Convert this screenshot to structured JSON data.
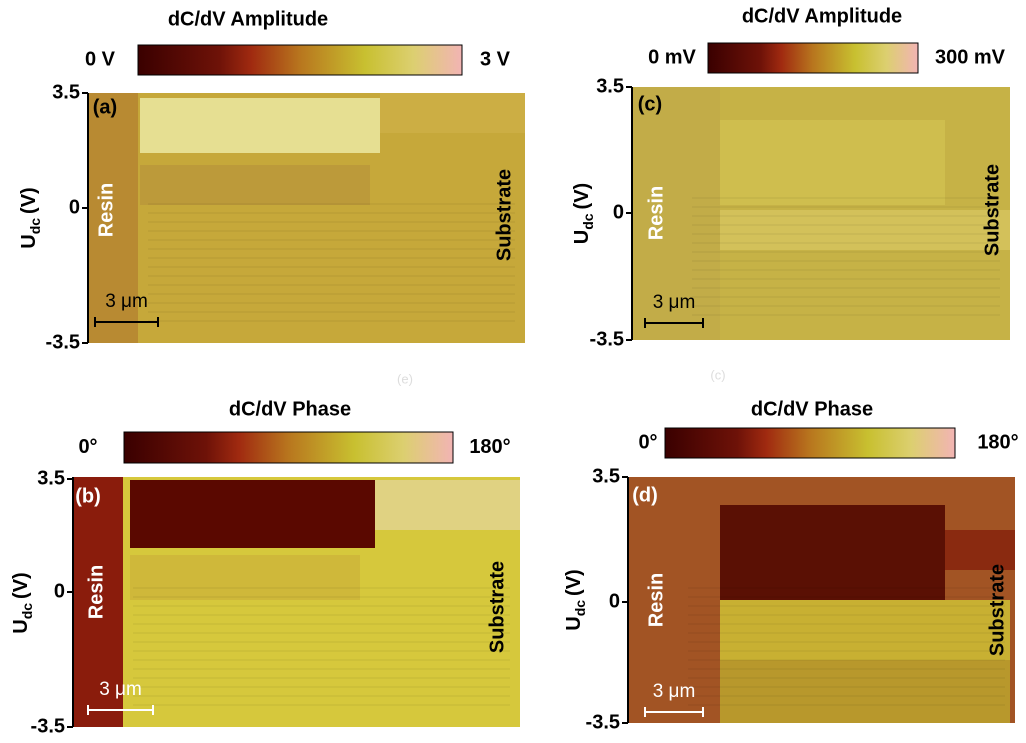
{
  "panels": [
    {
      "label": "(a)",
      "colorbar": {
        "title": "dC/dV Amplitude",
        "min": "0 V",
        "max": "3 V"
      },
      "y_axis": {
        "symbol": "U",
        "subscript": "dc",
        "unit": "(V)",
        "ticks": [
          "3.5",
          "0",
          "-3.5"
        ]
      },
      "left_region": "Resin",
      "right_region": "Substrate",
      "scale_bar": "3 μm"
    },
    {
      "label": "(b)",
      "colorbar": {
        "title": "dC/dV Phase",
        "min": "0°",
        "max": "180°"
      },
      "y_axis": {
        "symbol": "U",
        "subscript": "dc",
        "unit": "(V)",
        "ticks": [
          "3.5",
          "0",
          "-3.5"
        ]
      },
      "left_region": "Resin",
      "right_region": "Substrate",
      "scale_bar": "3 μm"
    },
    {
      "label": "(c)",
      "colorbar": {
        "title": "dC/dV Amplitude",
        "min": "0 mV",
        "max": "300 mV"
      },
      "y_axis": {
        "symbol": "U",
        "subscript": "dc",
        "unit": "(V)",
        "ticks": [
          "3.5",
          "0",
          "-3.5"
        ]
      },
      "left_region": "Resin",
      "right_region": "Substrate",
      "scale_bar": "3 μm"
    },
    {
      "label": "(d)",
      "colorbar": {
        "title": "dC/dV Phase",
        "min": "0°",
        "max": "180°"
      },
      "y_axis": {
        "symbol": "U",
        "subscript": "dc",
        "unit": "(V)",
        "ticks": [
          "3.5",
          "0",
          "-3.5"
        ]
      },
      "left_region": "Resin",
      "right_region": "Substrate",
      "scale_bar": "3 μm"
    }
  ],
  "ghost_labels": [
    "(e)",
    "(c)"
  ]
}
